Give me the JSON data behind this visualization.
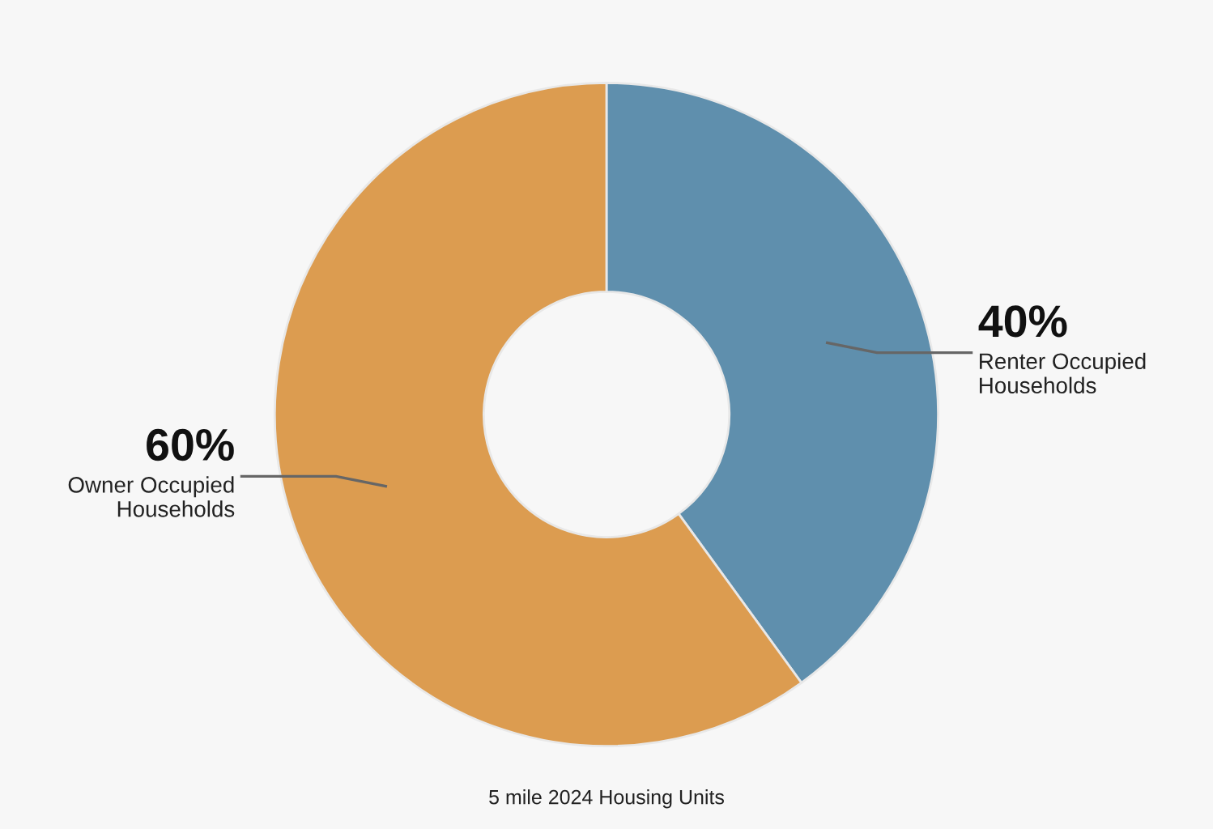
{
  "chart_data": {
    "type": "donut",
    "title": "5 mile 2024 Housing Units",
    "categories": [
      "Renter Occupied Households",
      "Owner Occupied Households"
    ],
    "values": [
      40,
      60
    ],
    "value_labels": [
      "40%",
      "60%"
    ],
    "colors": [
      "#5f8fad",
      "#dc9c50"
    ],
    "legend": false
  }
}
